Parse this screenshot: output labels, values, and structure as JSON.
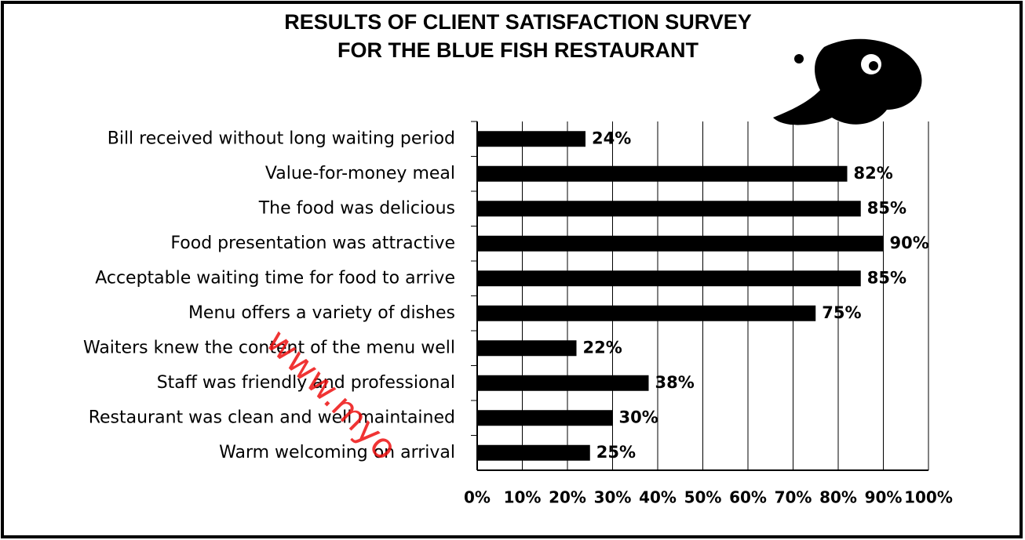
{
  "chart_data": {
    "type": "bar",
    "orientation": "horizontal",
    "title": "RESULTS OF CLIENT SATISFACTION SURVEY",
    "subtitle": "FOR THE BLUE FISH RESTAURANT",
    "watermark": "www.myo",
    "categories": [
      "Bill received without long waiting period",
      "Value-for-money meal",
      "The food was delicious",
      "Food presentation was attractive",
      "Acceptable waiting time for food to arrive",
      "Menu offers a variety of dishes",
      "Waiters knew the content of the menu well",
      "Staff was friendly and professional",
      "Restaurant was clean and well maintained",
      "Warm welcoming on arrival"
    ],
    "values": [
      24,
      82,
      85,
      90,
      85,
      75,
      22,
      38,
      30,
      25
    ],
    "value_labels": [
      "24%",
      "82%",
      "85%",
      "90%",
      "85%",
      "75%",
      "22%",
      "38%",
      "30%",
      "25%"
    ],
    "color": "#000000",
    "xlim": [
      0,
      100
    ],
    "xticks": [
      {
        "value": 0,
        "label": "0%"
      },
      {
        "value": 10,
        "label": "10%"
      },
      {
        "value": 20,
        "label": "20%"
      },
      {
        "value": 30,
        "label": "30%"
      },
      {
        "value": 40,
        "label": "40%"
      },
      {
        "value": 50,
        "label": "50%"
      },
      {
        "value": 60,
        "label": "60%"
      },
      {
        "value": 70,
        "label": "70%"
      },
      {
        "value": 80,
        "label": "80%"
      },
      {
        "value": 90,
        "label": "90%"
      },
      {
        "value": 100,
        "label": "100%"
      }
    ],
    "grid": true
  }
}
